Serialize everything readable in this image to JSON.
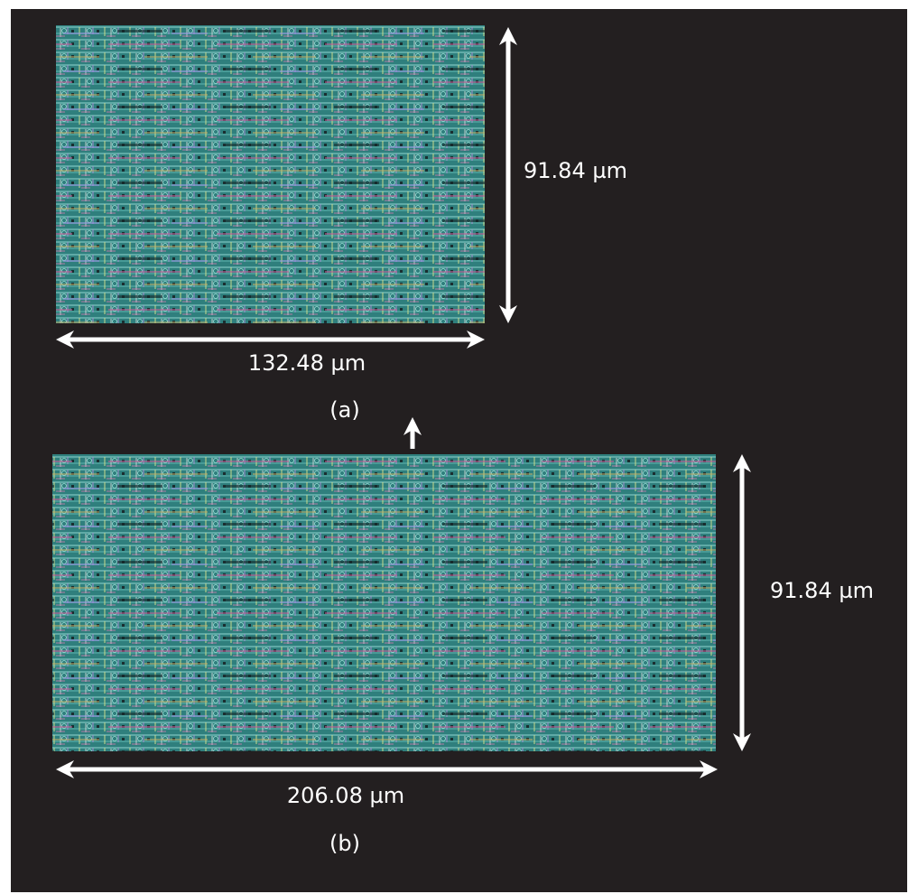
{
  "panels": [
    {
      "height_label": "91.84 µm",
      "width_label": "132.48 µm",
      "caption": "(a)"
    },
    {
      "height_label": "91.84 µm",
      "width_label": "206.08 µm",
      "caption": "(b)"
    }
  ]
}
